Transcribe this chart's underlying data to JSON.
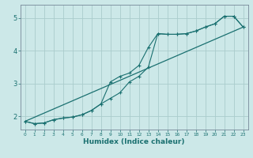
{
  "xlabel": "Humidex (Indice chaleur)",
  "ylabel": "",
  "bg_color": "#cce8e8",
  "grid_color": "#aacccc",
  "line_color": "#1a7070",
  "xlim": [
    -0.5,
    23.5
  ],
  "ylim": [
    1.6,
    5.4
  ],
  "yticks": [
    2,
    3,
    4,
    5
  ],
  "xticks": [
    0,
    1,
    2,
    3,
    4,
    5,
    6,
    7,
    8,
    9,
    10,
    11,
    12,
    13,
    14,
    15,
    16,
    17,
    18,
    19,
    20,
    21,
    22,
    23
  ],
  "series1_x": [
    0,
    1,
    2,
    3,
    4,
    5,
    6,
    7,
    8,
    9,
    10,
    11,
    12,
    13,
    14,
    15,
    16,
    17,
    18,
    19,
    20,
    21,
    22,
    23
  ],
  "series1_y": [
    1.85,
    1.78,
    1.8,
    1.9,
    1.95,
    1.98,
    2.05,
    2.18,
    2.38,
    3.05,
    3.22,
    3.32,
    3.55,
    4.1,
    4.52,
    4.5,
    4.5,
    4.52,
    4.6,
    4.72,
    4.82,
    5.05,
    5.05,
    4.72
  ],
  "series2_x": [
    0,
    1,
    2,
    3,
    4,
    5,
    6,
    7,
    8,
    9,
    10,
    11,
    12,
    13,
    14,
    15,
    16,
    17,
    18,
    19,
    20,
    21,
    22,
    23
  ],
  "series2_y": [
    1.85,
    1.78,
    1.8,
    1.9,
    1.95,
    1.98,
    2.05,
    2.18,
    2.38,
    2.55,
    2.72,
    3.05,
    3.22,
    3.5,
    4.52,
    4.5,
    4.5,
    4.52,
    4.6,
    4.72,
    4.82,
    5.05,
    5.05,
    4.72
  ],
  "series3_x": [
    0,
    23
  ],
  "series3_y": [
    1.85,
    4.72
  ]
}
